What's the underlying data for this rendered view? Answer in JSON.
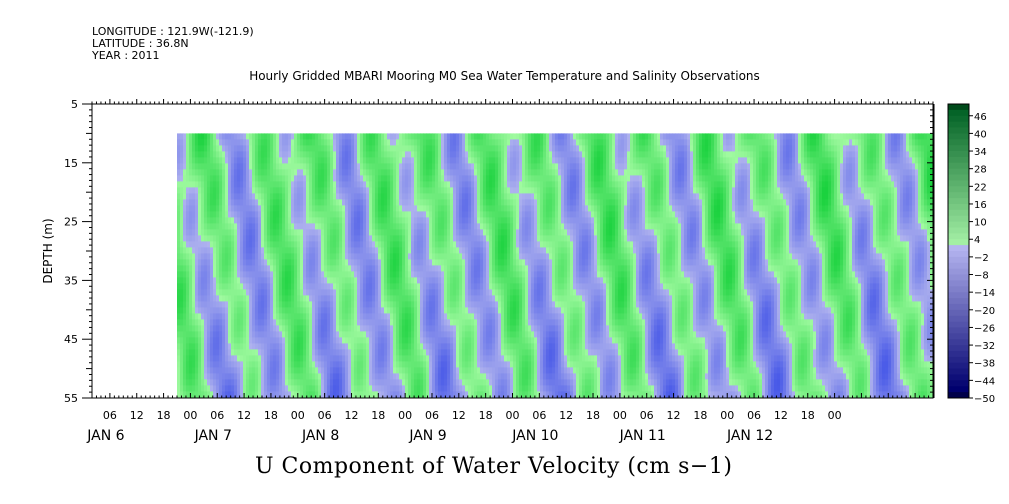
{
  "header": {
    "longitude": "LONGITUDE : 121.9W(-121.9)",
    "latitude": "LATITUDE : 36.8N",
    "year": "YEAR : 2011"
  },
  "chart_data": {
    "type": "heatmap",
    "title": "Hourly Gridded MBARI Mooring M0 Sea Water Temperature and Salinity Observations",
    "xlabel": "U Component of Water Velocity (cm s−1)",
    "ylabel": "DEPTH (m)",
    "y_ticks": [
      5,
      15,
      25,
      35,
      45,
      55
    ],
    "y_range": [
      5,
      55
    ],
    "y_inverted": true,
    "data_depth_range": [
      10,
      55
    ],
    "x_start": "2011-01-05 08:00",
    "x_data_start": "2011-01-06 03:00",
    "x_end": "2011-01-13 04:00",
    "hour_ticks": [
      "06",
      "12",
      "18",
      "00",
      "06",
      "12",
      "18",
      "00",
      "06",
      "12",
      "18",
      "00",
      "06",
      "12",
      "18",
      "00",
      "06",
      "12",
      "18",
      "00",
      "06",
      "12",
      "18",
      "00",
      "06",
      "12",
      "18",
      "00"
    ],
    "day_labels": [
      "JAN  6",
      "JAN  7",
      "JAN  8",
      "JAN  9",
      "JAN 10",
      "JAN 11",
      "JAN 12"
    ],
    "colorbar": {
      "ticks": [
        46,
        40,
        34,
        28,
        22,
        16,
        10,
        4,
        -2,
        -8,
        -14,
        -20,
        -26,
        -32,
        -38,
        -44,
        -50
      ],
      "range": [
        -50,
        50
      ],
      "low_color": "#00004a",
      "high_color": "#004a1a"
    }
  }
}
